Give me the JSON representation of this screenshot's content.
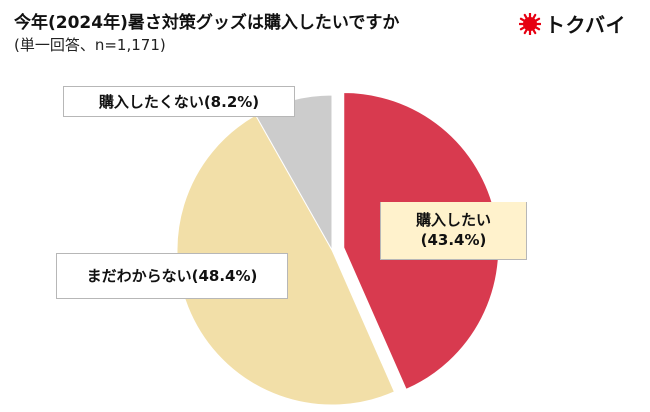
{
  "header": {
    "title": "今年(2024年)暑さ対策グッズは購入したいですか",
    "subtitle": "(単一回答、n=1,171)",
    "logo_text": "トクバイ",
    "logo_color": "#e60012"
  },
  "chart_data": {
    "type": "pie",
    "title": "今年(2024年)暑さ対策グッズは購入したいですか",
    "subtitle": "(単一回答、n=1,171)",
    "slices": [
      {
        "name": "購入したい",
        "value": 43.4,
        "label": "(43.4%)",
        "color": "#d83a4f",
        "exploded": true
      },
      {
        "name": "まだわからない",
        "value": 48.4,
        "label": "まだわからない(48.4%)",
        "color": "#f2dfa8",
        "exploded": false
      },
      {
        "name": "購入したくない",
        "value": 8.2,
        "label": "購入したくない(8.2%)",
        "color": "#cccccc",
        "exploded": false
      }
    ],
    "start_angle_deg": 0,
    "direction": "clockwise"
  }
}
